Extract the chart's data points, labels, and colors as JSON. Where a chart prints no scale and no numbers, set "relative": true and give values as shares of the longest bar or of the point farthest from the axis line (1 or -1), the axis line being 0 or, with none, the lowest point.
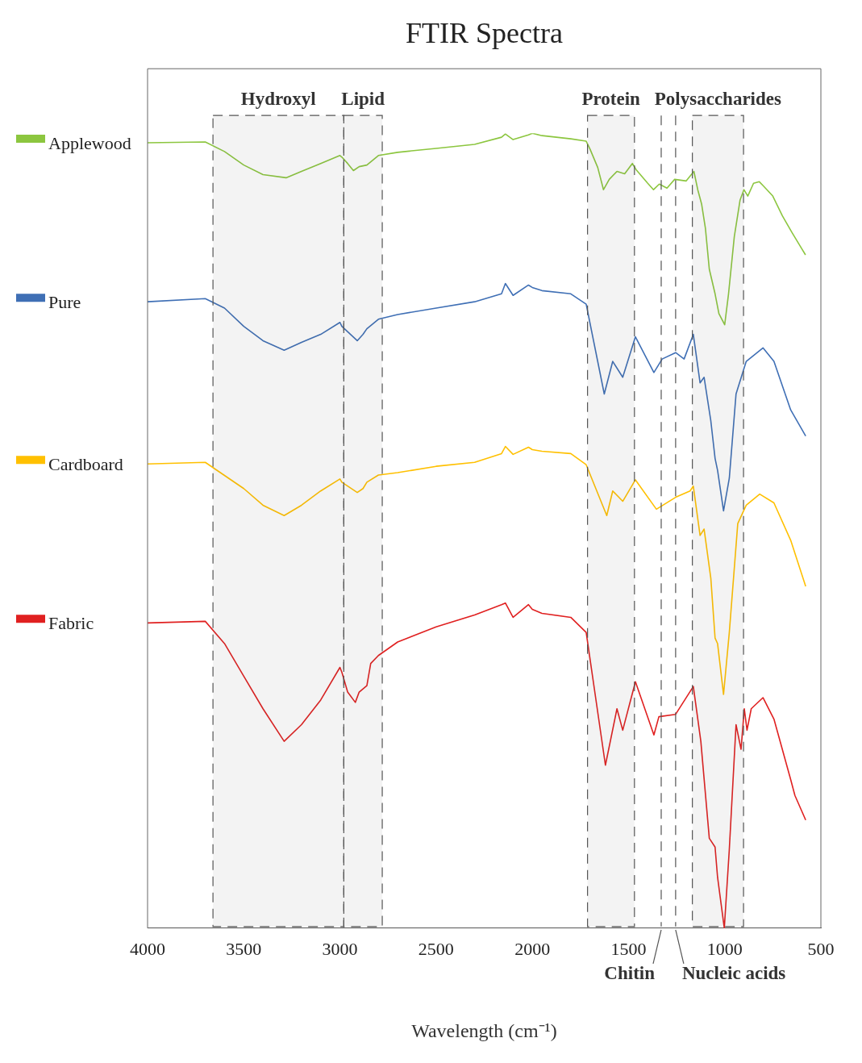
{
  "chart_data": {
    "type": "line",
    "title": "FTIR Spectra",
    "xlabel": "Wavelength (cm⁻¹)",
    "relative": true,
    "legend": "left",
    "marker": "none",
    "line_style": "solid",
    "xlim": [
      4000,
      500
    ],
    "xticks": [
      4000,
      3500,
      3000,
      2500,
      2000,
      1500,
      1000,
      500
    ],
    "bands": [
      {
        "axis": "x",
        "from": 3660,
        "to": 2980,
        "label": "Hydroxyl",
        "color": "#555555"
      },
      {
        "axis": "x",
        "from": 2980,
        "to": 2780,
        "label": "Lipid",
        "color": "#555555"
      },
      {
        "axis": "x",
        "from": 1713,
        "to": 1469,
        "label": "Protein",
        "color": "#555555"
      },
      {
        "axis": "x",
        "from": 1168,
        "to": 902,
        "label": "Polysaccharides",
        "color": "#555555"
      }
    ],
    "ref_lines": [
      {
        "axis": "x",
        "value": 1330,
        "label": "Chitin",
        "color": "#555555",
        "line_style": "dashed"
      },
      {
        "axis": "x",
        "value": 1255,
        "label": "Nucleic acids",
        "color": "#555555",
        "line_style": "dashed"
      }
    ],
    "series": [
      {
        "name": "Applewood",
        "color": "#8cc63f",
        "x": [
          4000,
          3700,
          3600,
          3500,
          3400,
          3280,
          3200,
          3100,
          3000,
          2990,
          2960,
          2930,
          2900,
          2860,
          2800,
          2700,
          2500,
          2300,
          2160,
          2140,
          2100,
          2020,
          2000,
          1950,
          1800,
          1720,
          1700,
          1660,
          1630,
          1600,
          1560,
          1520,
          1480,
          1460,
          1400,
          1370,
          1340,
          1300,
          1260,
          1200,
          1160,
          1140,
          1120,
          1100,
          1080,
          1050,
          1030,
          1000,
          980,
          950,
          920,
          900,
          880,
          850,
          820,
          800,
          750,
          700,
          650,
          600,
          580
        ],
        "values": [
          0.988,
          0.989,
          0.977,
          0.96,
          0.948,
          0.944,
          0.952,
          0.962,
          0.972,
          0.97,
          0.962,
          0.953,
          0.958,
          0.96,
          0.972,
          0.976,
          0.981,
          0.986,
          0.995,
          0.999,
          0.992,
          0.998,
          1.0,
          0.997,
          0.993,
          0.99,
          0.98,
          0.957,
          0.929,
          0.942,
          0.952,
          0.949,
          0.962,
          0.954,
          0.937,
          0.929,
          0.936,
          0.931,
          0.942,
          0.94,
          0.952,
          0.929,
          0.911,
          0.88,
          0.829,
          0.798,
          0.773,
          0.759,
          0.798,
          0.87,
          0.916,
          0.929,
          0.921,
          0.937,
          0.939,
          0.934,
          0.921,
          0.896,
          0.875,
          0.855,
          0.847
        ]
      },
      {
        "name": "Pure",
        "color": "#3f6fb5",
        "x": [
          4000,
          3700,
          3600,
          3500,
          3400,
          3290,
          3200,
          3100,
          3000,
          2990,
          2910,
          2880,
          2860,
          2800,
          2700,
          2500,
          2300,
          2160,
          2140,
          2100,
          2020,
          2000,
          1950,
          1800,
          1720,
          1626,
          1582,
          1530,
          1464,
          1368,
          1325,
          1255,
          1211,
          1163,
          1128,
          1107,
          1072,
          1050,
          1037,
          1006,
          976,
          941,
          888,
          801,
          744,
          657,
          579
        ],
        "values": [
          0.788,
          0.792,
          0.78,
          0.757,
          0.739,
          0.727,
          0.737,
          0.747,
          0.762,
          0.757,
          0.739,
          0.747,
          0.754,
          0.766,
          0.772,
          0.78,
          0.788,
          0.798,
          0.811,
          0.796,
          0.809,
          0.806,
          0.802,
          0.798,
          0.785,
          0.672,
          0.713,
          0.693,
          0.744,
          0.699,
          0.716,
          0.724,
          0.716,
          0.747,
          0.686,
          0.693,
          0.638,
          0.591,
          0.576,
          0.525,
          0.566,
          0.672,
          0.713,
          0.73,
          0.713,
          0.652,
          0.619
        ]
      },
      {
        "name": "Cardboard",
        "color": "#ffc000",
        "x": [
          4000,
          3700,
          3500,
          3400,
          3290,
          3200,
          3100,
          3000,
          2990,
          2910,
          2880,
          2860,
          2800,
          2700,
          2500,
          2300,
          2160,
          2140,
          2100,
          2020,
          2000,
          1950,
          1800,
          1720,
          1613,
          1582,
          1530,
          1464,
          1355,
          1255,
          1180,
          1163,
          1128,
          1107,
          1072,
          1050,
          1037,
          1006,
          976,
          932,
          888,
          818,
          744,
          657,
          579
        ],
        "values": [
          0.584,
          0.586,
          0.553,
          0.532,
          0.519,
          0.532,
          0.55,
          0.565,
          0.561,
          0.548,
          0.553,
          0.561,
          0.57,
          0.573,
          0.581,
          0.586,
          0.597,
          0.606,
          0.596,
          0.605,
          0.602,
          0.6,
          0.597,
          0.583,
          0.519,
          0.55,
          0.537,
          0.564,
          0.527,
          0.542,
          0.55,
          0.556,
          0.494,
          0.502,
          0.44,
          0.365,
          0.358,
          0.294,
          0.372,
          0.509,
          0.532,
          0.546,
          0.535,
          0.488,
          0.43
        ]
      },
      {
        "name": "Fabric",
        "color": "#e02020",
        "x": [
          4000,
          3700,
          3600,
          3500,
          3400,
          3290,
          3200,
          3100,
          3000,
          2990,
          2960,
          2920,
          2900,
          2860,
          2840,
          2800,
          2700,
          2500,
          2300,
          2160,
          2140,
          2100,
          2020,
          2000,
          1950,
          1800,
          1720,
          1620,
          1560,
          1530,
          1464,
          1368,
          1342,
          1255,
          1163,
          1124,
          1080,
          1050,
          1037,
          1002,
          976,
          941,
          915,
          898,
          884,
          862,
          801,
          744,
          657,
          635,
          579
        ],
        "values": [
          0.384,
          0.386,
          0.358,
          0.317,
          0.276,
          0.235,
          0.256,
          0.287,
          0.328,
          0.322,
          0.297,
          0.284,
          0.297,
          0.305,
          0.333,
          0.343,
          0.36,
          0.379,
          0.394,
          0.407,
          0.409,
          0.391,
          0.407,
          0.401,
          0.396,
          0.391,
          0.372,
          0.205,
          0.276,
          0.249,
          0.31,
          0.243,
          0.266,
          0.269,
          0.304,
          0.235,
          0.113,
          0.102,
          0.064,
          0,
          0.099,
          0.256,
          0.225,
          0.276,
          0.249,
          0.276,
          0.29,
          0.263,
          0.187,
          0.167,
          0.136
        ]
      }
    ]
  }
}
